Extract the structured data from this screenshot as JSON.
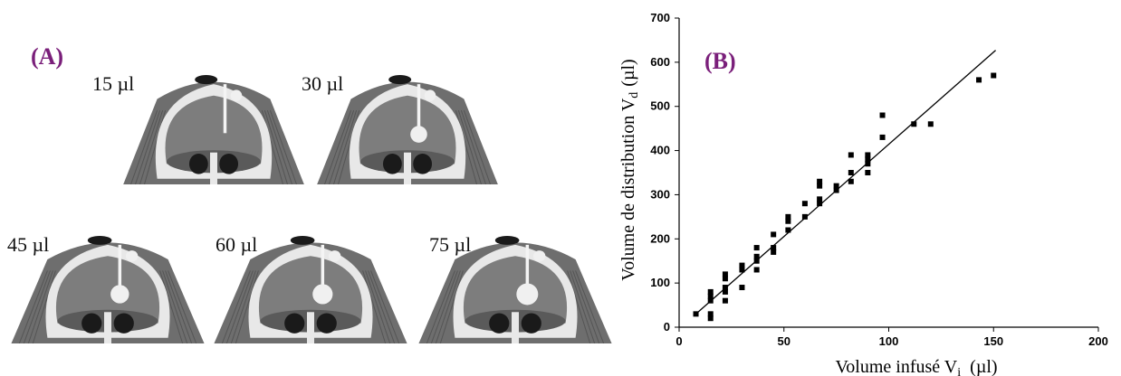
{
  "panel_a": {
    "label": "(A)",
    "scans": [
      {
        "label": "15 µl",
        "bolus": 0.0
      },
      {
        "label": "30 µl",
        "bolus": 0.55
      },
      {
        "label": "45 µl",
        "bolus": 0.7
      },
      {
        "label": "60 µl",
        "bolus": 0.85
      },
      {
        "label": "75 µl",
        "bolus": 1.0
      }
    ],
    "colors": {
      "tissue": "#6e6e6e",
      "bone": "#e8e8e8",
      "brain": "#7d7d7d",
      "background": "#ffffff",
      "dark": "#1a1a1a"
    }
  },
  "chart_data": {
    "type": "scatter",
    "panel_label": "(B)",
    "xlabel": "Volume infusé V",
    "xlabel_sub": "i",
    "xlabel_unit": "(µl)",
    "ylabel": "Volume de distribution V",
    "ylabel_sub": "d",
    "ylabel_unit": "(µl)",
    "xlim": [
      0,
      200
    ],
    "ylim": [
      0,
      700
    ],
    "xticks": [
      "0",
      "50",
      "100",
      "150",
      "200"
    ],
    "yticks": [
      "0",
      "100",
      "200",
      "300",
      "400",
      "500",
      "600",
      "700"
    ],
    "grid": false,
    "points": [
      {
        "x": 8,
        "y": 30
      },
      {
        "x": 15,
        "y": 20
      },
      {
        "x": 15,
        "y": 30
      },
      {
        "x": 15,
        "y": 60
      },
      {
        "x": 15,
        "y": 70
      },
      {
        "x": 15,
        "y": 80
      },
      {
        "x": 22,
        "y": 60
      },
      {
        "x": 22,
        "y": 80
      },
      {
        "x": 22,
        "y": 90
      },
      {
        "x": 22,
        "y": 110
      },
      {
        "x": 22,
        "y": 120
      },
      {
        "x": 30,
        "y": 90
      },
      {
        "x": 30,
        "y": 130
      },
      {
        "x": 30,
        "y": 140
      },
      {
        "x": 37,
        "y": 130
      },
      {
        "x": 37,
        "y": 150
      },
      {
        "x": 37,
        "y": 160
      },
      {
        "x": 37,
        "y": 180
      },
      {
        "x": 45,
        "y": 170
      },
      {
        "x": 45,
        "y": 180
      },
      {
        "x": 45,
        "y": 210
      },
      {
        "x": 52,
        "y": 220
      },
      {
        "x": 52,
        "y": 240
      },
      {
        "x": 52,
        "y": 250
      },
      {
        "x": 60,
        "y": 250
      },
      {
        "x": 60,
        "y": 280
      },
      {
        "x": 67,
        "y": 280
      },
      {
        "x": 67,
        "y": 290
      },
      {
        "x": 67,
        "y": 320
      },
      {
        "x": 67,
        "y": 330
      },
      {
        "x": 75,
        "y": 310
      },
      {
        "x": 75,
        "y": 320
      },
      {
        "x": 82,
        "y": 330
      },
      {
        "x": 82,
        "y": 350
      },
      {
        "x": 82,
        "y": 390
      },
      {
        "x": 90,
        "y": 350
      },
      {
        "x": 90,
        "y": 370
      },
      {
        "x": 90,
        "y": 380
      },
      {
        "x": 90,
        "y": 390
      },
      {
        "x": 97,
        "y": 430
      },
      {
        "x": 97,
        "y": 480
      },
      {
        "x": 112,
        "y": 460
      },
      {
        "x": 120,
        "y": 460
      },
      {
        "x": 143,
        "y": 560
      },
      {
        "x": 150,
        "y": 570
      }
    ],
    "fit_line": {
      "x": [
        8,
        151
      ],
      "y": [
        30,
        627
      ]
    },
    "marker_color": "#000000",
    "line_color": "#000000"
  }
}
